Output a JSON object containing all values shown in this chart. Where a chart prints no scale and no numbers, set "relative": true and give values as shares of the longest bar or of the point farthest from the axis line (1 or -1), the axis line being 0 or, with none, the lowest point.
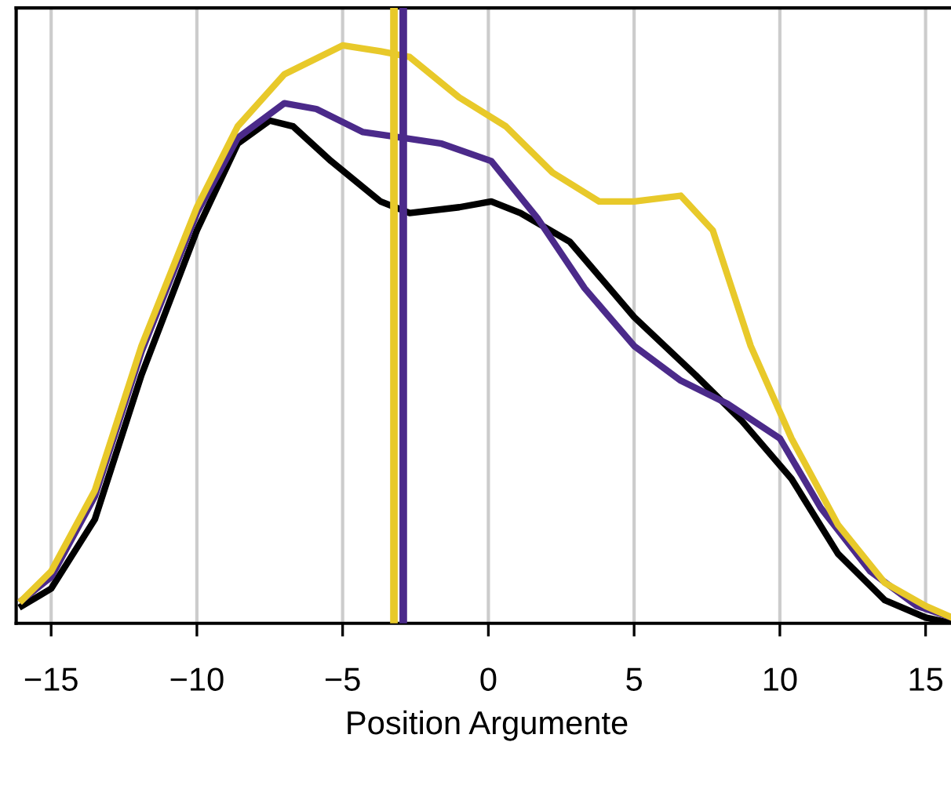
{
  "chart_data": {
    "type": "line",
    "relative": true,
    "xlabel": "Position Argumente",
    "xlim": [
      -16.2,
      16.1
    ],
    "xticks": [
      {
        "value": -15,
        "label": "−15"
      },
      {
        "value": -10,
        "label": "−10"
      },
      {
        "value": -5,
        "label": "−5"
      },
      {
        "value": 0,
        "label": "0"
      },
      {
        "value": 5,
        "label": "5"
      },
      {
        "value": 10,
        "label": "10"
      },
      {
        "value": 15,
        "label": "15"
      }
    ],
    "tick_labels": "x",
    "grid": "x",
    "marker": "none",
    "line_style": "solid",
    "series": [
      {
        "color": "#000000",
        "x": [
          -16.0,
          -15.0,
          -13.5,
          -11.9,
          -10.0,
          -8.6,
          -7.5,
          -6.7,
          -5.4,
          -3.7,
          -2.7,
          -1.0,
          0.1,
          1.1,
          2.8,
          5.0,
          7.1,
          8.7,
          10.4,
          12.0,
          13.6,
          15.0,
          15.9
        ],
        "values": [
          0.03,
          0.06,
          0.18,
          0.43,
          0.68,
          0.83,
          0.87,
          0.86,
          0.8,
          0.73,
          0.71,
          0.72,
          0.73,
          0.71,
          0.66,
          0.53,
          0.43,
          0.35,
          0.25,
          0.12,
          0.04,
          0.01,
          0.0
        ]
      },
      {
        "color": "#4b2a8a",
        "x": [
          -16.0,
          -15.0,
          -13.5,
          -11.9,
          -10.0,
          -8.6,
          -7.0,
          -5.9,
          -4.3,
          -2.9,
          -1.6,
          0.1,
          1.7,
          3.3,
          5.0,
          6.6,
          8.2,
          10.0,
          11.4,
          13.1,
          14.7,
          15.9
        ],
        "values": [
          0.04,
          0.08,
          0.22,
          0.47,
          0.71,
          0.84,
          0.9,
          0.89,
          0.85,
          0.84,
          0.83,
          0.8,
          0.7,
          0.58,
          0.48,
          0.42,
          0.38,
          0.32,
          0.2,
          0.09,
          0.03,
          0.01
        ]
      },
      {
        "color": "#e8c92a",
        "x": [
          -16.0,
          -15.0,
          -13.5,
          -11.9,
          -10.0,
          -8.6,
          -7.0,
          -5.0,
          -3.7,
          -2.7,
          -1.0,
          0.6,
          2.2,
          3.8,
          5.0,
          6.6,
          7.7,
          9.0,
          10.4,
          12.0,
          13.6,
          15.0,
          15.9
        ],
        "values": [
          0.04,
          0.09,
          0.23,
          0.48,
          0.72,
          0.86,
          0.95,
          1.0,
          0.99,
          0.98,
          0.91,
          0.86,
          0.78,
          0.73,
          0.73,
          0.74,
          0.68,
          0.48,
          0.32,
          0.17,
          0.07,
          0.03,
          0.01
        ]
      }
    ],
    "ref_lines": [
      {
        "axis": "x",
        "value": -3.24,
        "color": "#e8c92a",
        "line_style": "solid"
      },
      {
        "axis": "x",
        "value": -2.92,
        "color": "#4b2a8a",
        "line_style": "solid"
      }
    ]
  }
}
